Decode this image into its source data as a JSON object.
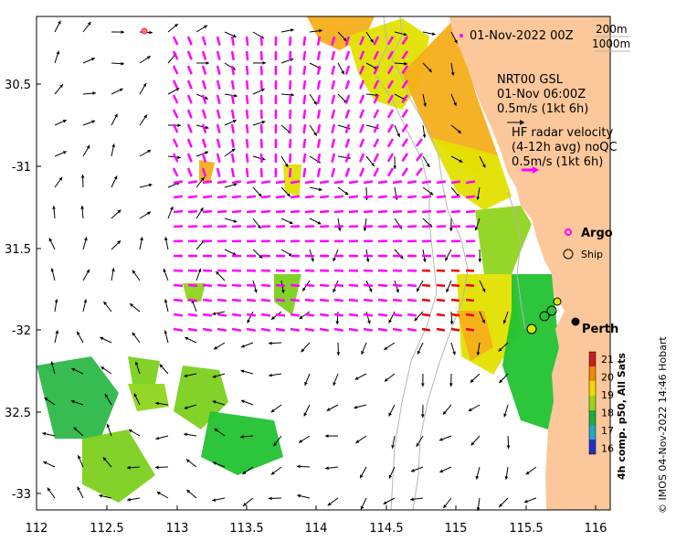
{
  "map": {
    "lon_ticks": [
      "112",
      "112.5",
      "113",
      "113.5",
      "114",
      "114.5",
      "115",
      "115.5",
      "116"
    ],
    "lat_ticks": [
      "30.5",
      "-31",
      "31.5",
      "-32",
      "32.5",
      "-33"
    ],
    "date_label": "01-Nov-2022 00Z",
    "contours_legend": [
      "200m",
      "1000m"
    ],
    "model_lines": [
      "NRT00 GSL",
      "01-Nov 06:00Z",
      "0.5m/s (1kt 6h)"
    ],
    "hf_lines": [
      "HF radar velocity",
      "(4-12h avg) noQC",
      "0.5m/s (1kt 6h)"
    ],
    "argo_label": "Argo",
    "ship_label": "Ship",
    "city_label": "Perth",
    "colorbar": {
      "ticks": [
        "21",
        "20",
        "19",
        "18",
        "17",
        "16"
      ],
      "caption": "4h comp. p50, All Sats"
    },
    "credit": "© IMOS 04-Nov-2022 14:46 Hobart",
    "colors": {
      "land": "#fcc79a",
      "argo": "#ff00ff",
      "model_arrow": "#000000",
      "hf_arrow": "#ff00ff",
      "hf_arrow_strong": "#ee0000",
      "sst_warm": "#f7b21e",
      "sst_mid": "#e8e400",
      "sst_cool": "#22c230"
    }
  }
}
